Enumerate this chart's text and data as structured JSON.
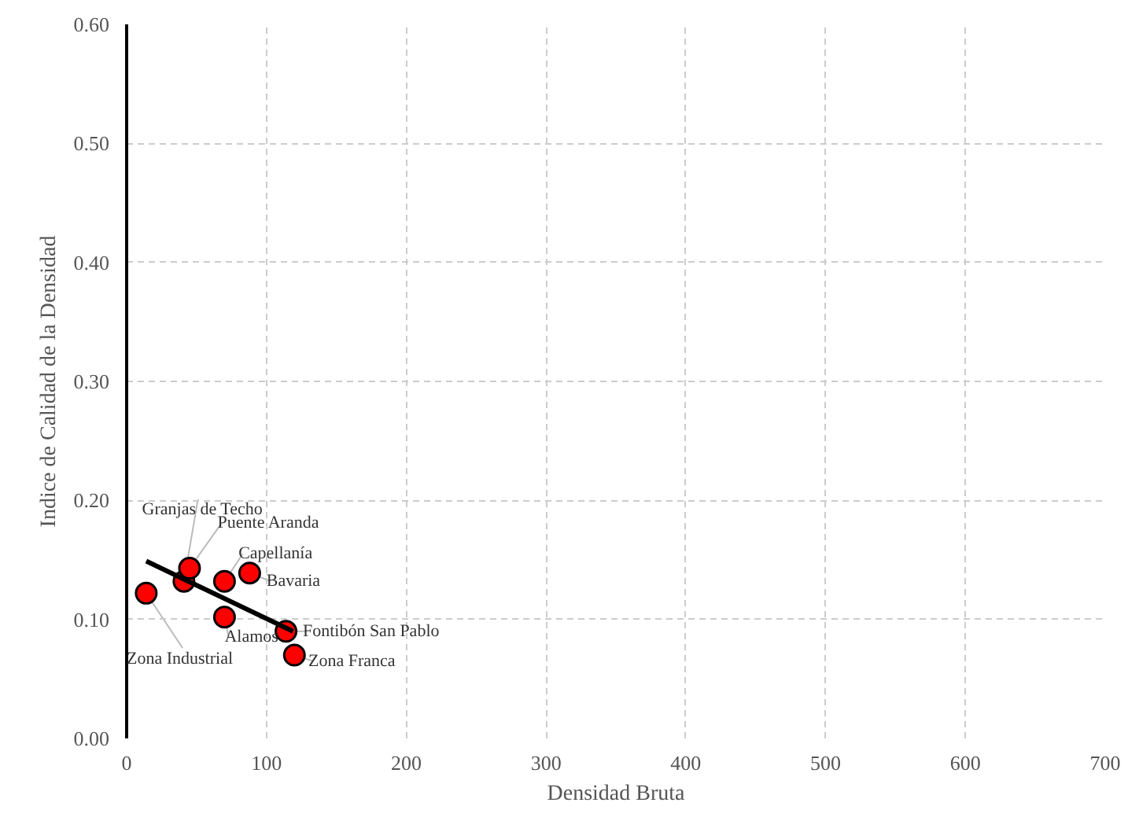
{
  "chart_data": {
    "type": "scatter",
    "xlabel": "Densidad Bruta",
    "ylabel": "Indice de Calidad de la Densidad",
    "xlim": [
      0,
      700
    ],
    "xticks": [
      0,
      100,
      200,
      300,
      400,
      500,
      600,
      700
    ],
    "ylim": [
      0,
      0.6
    ],
    "yticks": [
      {
        "value": 0,
        "label": "0.00"
      },
      {
        "value": 0.1,
        "label": "0.10"
      },
      {
        "value": 0.2,
        "label": "0.20"
      },
      {
        "value": 0.3,
        "label": "0.30"
      },
      {
        "value": 0.4,
        "label": "0.40"
      },
      {
        "value": 0.5,
        "label": "0.50"
      },
      {
        "value": 0.6,
        "label": "0.60"
      }
    ],
    "grid": true,
    "marker": "circle",
    "series": [
      {
        "color": "#ff0000",
        "x": [
          14,
          41,
          45,
          70,
          88,
          70,
          114,
          120
        ],
        "values": [
          0.122,
          0.132,
          0.143,
          0.132,
          0.139,
          0.102,
          0.09,
          0.07
        ]
      },
      {
        "type": "line",
        "marker": "none",
        "color": "#000000",
        "x": [
          14,
          119
        ],
        "values": [
          0.149,
          0.09
        ]
      }
    ],
    "annotations": [
      {
        "text": "Zona Industrial",
        "x": 14,
        "y": 0.122
      },
      {
        "text": "Granjas de Techo",
        "x": 41,
        "y": 0.132
      },
      {
        "text": "Puente Aranda",
        "x": 45,
        "y": 0.143
      },
      {
        "text": "Capellanía",
        "x": 70,
        "y": 0.132
      },
      {
        "text": "Bavaria",
        "x": 88,
        "y": 0.139
      },
      {
        "text": "Alamos",
        "x": 70,
        "y": 0.102
      },
      {
        "text": "Fontibón San Pablo",
        "x": 114,
        "y": 0.09
      },
      {
        "text": "Zona Franca",
        "x": 120,
        "y": 0.07
      }
    ]
  }
}
